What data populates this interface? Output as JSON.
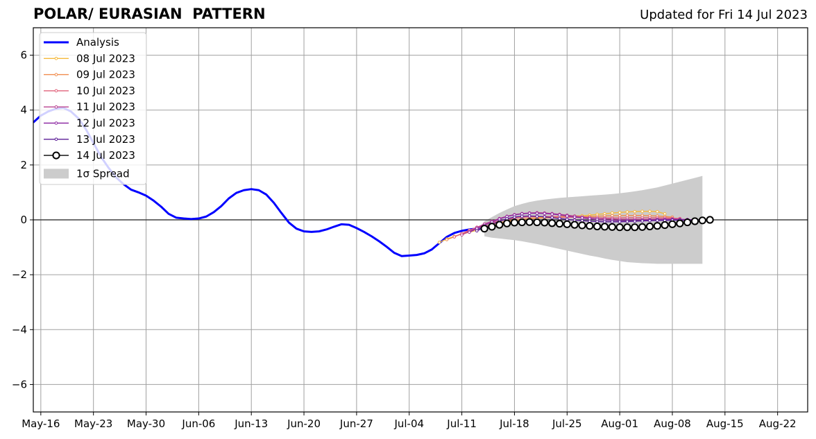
{
  "header": {
    "title": "POLAR/ EURASIAN  PATTERN",
    "updated": "Updated for Fri 14 Jul 2023"
  },
  "chart_data": {
    "type": "line",
    "title": "POLAR/ EURASIAN  PATTERN",
    "xlabel": "",
    "ylabel": "",
    "x_is_date": true,
    "xlim": [
      "2023-05-15",
      "2023-08-26"
    ],
    "ylim": [
      -7,
      7
    ],
    "yticks": [
      -6,
      -4,
      -2,
      0,
      2,
      4,
      6
    ],
    "xtick_dates": [
      "2023-05-16",
      "2023-05-23",
      "2023-05-30",
      "2023-06-06",
      "2023-06-13",
      "2023-06-20",
      "2023-06-27",
      "2023-07-04",
      "2023-07-11",
      "2023-07-18",
      "2023-07-25",
      "2023-08-01",
      "2023-08-08",
      "2023-08-15",
      "2023-08-22"
    ],
    "xtick_labels": [
      "May-16",
      "May-23",
      "May-30",
      "Jun-06",
      "Jun-13",
      "Jun-20",
      "Jun-27",
      "Jul-04",
      "Jul-11",
      "Jul-18",
      "Jul-25",
      "Aug-01",
      "Aug-08",
      "Aug-15",
      "Aug-22"
    ],
    "grid": true,
    "zero_line": true,
    "legend_position": "top-left",
    "legend_sigma_label": "1σ Spread",
    "analysis": {
      "name": "Analysis",
      "color": "#0000ff",
      "x": [
        "2023-05-15",
        "2023-05-16",
        "2023-05-17",
        "2023-05-18",
        "2023-05-19",
        "2023-05-20",
        "2023-05-21",
        "2023-05-22",
        "2023-05-23",
        "2023-05-24",
        "2023-05-25",
        "2023-05-26",
        "2023-05-27",
        "2023-05-28",
        "2023-05-29",
        "2023-05-30",
        "2023-05-31",
        "2023-06-01",
        "2023-06-02",
        "2023-06-03",
        "2023-06-04",
        "2023-06-05",
        "2023-06-06",
        "2023-06-07",
        "2023-06-08",
        "2023-06-09",
        "2023-06-10",
        "2023-06-11",
        "2023-06-12",
        "2023-06-13",
        "2023-06-14",
        "2023-06-15",
        "2023-06-16",
        "2023-06-17",
        "2023-06-18",
        "2023-06-19",
        "2023-06-20",
        "2023-06-21",
        "2023-06-22",
        "2023-06-23",
        "2023-06-24",
        "2023-06-25",
        "2023-06-26",
        "2023-06-27",
        "2023-06-28",
        "2023-06-29",
        "2023-06-30",
        "2023-07-01",
        "2023-07-02",
        "2023-07-03",
        "2023-07-04",
        "2023-07-05",
        "2023-07-06",
        "2023-07-07",
        "2023-07-08",
        "2023-07-09",
        "2023-07-10",
        "2023-07-11",
        "2023-07-12",
        "2023-07-13",
        "2023-07-14"
      ],
      "values": [
        3.55,
        3.8,
        3.95,
        4.05,
        4.08,
        3.95,
        3.7,
        3.3,
        2.8,
        2.3,
        1.9,
        1.55,
        1.3,
        1.1,
        1.0,
        0.88,
        0.7,
        0.48,
        0.22,
        0.08,
        0.05,
        0.03,
        0.05,
        0.12,
        0.28,
        0.5,
        0.78,
        0.98,
        1.08,
        1.12,
        1.08,
        0.92,
        0.62,
        0.25,
        -0.1,
        -0.32,
        -0.42,
        -0.44,
        -0.42,
        -0.35,
        -0.25,
        -0.16,
        -0.18,
        -0.3,
        -0.44,
        -0.6,
        -0.78,
        -0.98,
        -1.2,
        -1.32,
        -1.3,
        -1.28,
        -1.22,
        -1.08,
        -0.85,
        -0.62,
        -0.48,
        -0.4,
        -0.35,
        -0.32,
        -0.3
      ]
    },
    "spread": {
      "x": [
        "2023-07-14",
        "2023-07-15",
        "2023-07-16",
        "2023-07-17",
        "2023-07-18",
        "2023-07-19",
        "2023-07-20",
        "2023-07-21",
        "2023-07-22",
        "2023-07-23",
        "2023-07-24",
        "2023-07-25",
        "2023-07-26",
        "2023-07-27",
        "2023-07-28",
        "2023-07-29",
        "2023-07-30",
        "2023-07-31",
        "2023-08-01",
        "2023-08-02",
        "2023-08-03",
        "2023-08-04",
        "2023-08-05",
        "2023-08-06",
        "2023-08-07",
        "2023-08-08",
        "2023-08-09",
        "2023-08-10",
        "2023-08-11",
        "2023-08-12"
      ],
      "upper": [
        -0.05,
        0.1,
        0.25,
        0.38,
        0.5,
        0.58,
        0.65,
        0.7,
        0.74,
        0.77,
        0.8,
        0.82,
        0.84,
        0.86,
        0.88,
        0.9,
        0.92,
        0.94,
        0.97,
        1.0,
        1.04,
        1.08,
        1.13,
        1.18,
        1.25,
        1.32,
        1.39,
        1.46,
        1.53,
        1.6
      ],
      "lower": [
        -0.6,
        -0.65,
        -0.68,
        -0.71,
        -0.74,
        -0.78,
        -0.83,
        -0.88,
        -0.94,
        -1.0,
        -1.06,
        -1.12,
        -1.18,
        -1.24,
        -1.3,
        -1.35,
        -1.41,
        -1.46,
        -1.5,
        -1.54,
        -1.56,
        -1.58,
        -1.59,
        -1.6,
        -1.6,
        -1.6,
        -1.6,
        -1.6,
        -1.6,
        -1.6
      ],
      "color": "#cccccc"
    },
    "forecasts": [
      {
        "name": "08 Jul 2023",
        "color": "#f5b93a",
        "start": "2023-07-08",
        "values": [
          -0.82,
          -0.7,
          -0.6,
          -0.52,
          -0.45,
          -0.38,
          -0.3,
          -0.22,
          -0.14,
          -0.08,
          -0.02,
          0.02,
          0.05,
          0.08,
          0.1,
          0.11,
          0.12,
          0.13,
          0.14,
          0.15,
          0.17,
          0.2,
          0.22,
          0.25,
          0.27,
          0.29,
          0.3,
          0.31,
          0.31,
          0.3,
          0.22
        ]
      },
      {
        "name": "09 Jul 2023",
        "color": "#f08b4b",
        "start": "2023-07-09",
        "values": [
          -0.72,
          -0.62,
          -0.5,
          -0.4,
          -0.32,
          -0.24,
          -0.16,
          -0.1,
          -0.05,
          -0.01,
          0.02,
          0.04,
          0.06,
          0.07,
          0.08,
          0.09,
          0.1,
          0.1,
          0.11,
          0.12,
          0.13,
          0.14,
          0.15,
          0.15,
          0.16,
          0.16,
          0.16,
          0.15,
          0.14,
          0.12,
          0.1
        ]
      },
      {
        "name": "10 Jul 2023",
        "color": "#e0607a",
        "start": "2023-07-10",
        "values": [
          -0.62,
          -0.5,
          -0.38,
          -0.27,
          -0.18,
          -0.1,
          -0.04,
          0.02,
          0.06,
          0.09,
          0.11,
          0.12,
          0.12,
          0.12,
          0.11,
          0.1,
          0.09,
          0.08,
          0.08,
          0.07,
          0.07,
          0.07,
          0.07,
          0.08,
          0.08,
          0.08,
          0.08,
          0.08,
          0.07,
          0.06,
          0.05
        ]
      },
      {
        "name": "11 Jul 2023",
        "color": "#b8418f",
        "start": "2023-07-11",
        "values": [
          -0.55,
          -0.42,
          -0.28,
          -0.15,
          -0.05,
          0.05,
          0.13,
          0.19,
          0.23,
          0.25,
          0.26,
          0.25,
          0.23,
          0.2,
          0.17,
          0.14,
          0.11,
          0.08,
          0.06,
          0.04,
          0.03,
          0.02,
          0.02,
          0.02,
          0.02,
          0.02,
          0.03,
          0.03,
          0.03,
          0.02,
          0.01
        ]
      },
      {
        "name": "12 Jul 2023",
        "color": "#8e2aa3",
        "start": "2023-07-12",
        "values": [
          -0.45,
          -0.32,
          -0.2,
          -0.08,
          0.03,
          0.12,
          0.18,
          0.22,
          0.24,
          0.24,
          0.23,
          0.21,
          0.18,
          0.14,
          0.1,
          0.07,
          0.04,
          0.01,
          -0.01,
          -0.02,
          -0.03,
          -0.03,
          -0.03,
          -0.02,
          -0.01,
          0.0,
          0.0,
          0.01,
          0.01,
          0.01,
          0.0
        ]
      },
      {
        "name": "13 Jul 2023",
        "color": "#5a1b96",
        "start": "2023-07-13",
        "values": [
          -0.4,
          -0.28,
          -0.16,
          -0.05,
          0.04,
          0.1,
          0.13,
          0.14,
          0.13,
          0.11,
          0.08,
          0.05,
          0.02,
          -0.01,
          -0.03,
          -0.05,
          -0.06,
          -0.07,
          -0.07,
          -0.07,
          -0.06,
          -0.05,
          -0.04,
          -0.03,
          -0.02,
          -0.02,
          -0.01,
          -0.01,
          -0.01,
          0.0,
          0.0
        ]
      },
      {
        "name": "14 Jul 2023",
        "color": "#000000",
        "start": "2023-07-14",
        "values": [
          -0.32,
          -0.25,
          -0.18,
          -0.13,
          -0.1,
          -0.09,
          -0.08,
          -0.09,
          -0.1,
          -0.12,
          -0.14,
          -0.16,
          -0.18,
          -0.2,
          -0.22,
          -0.24,
          -0.25,
          -0.26,
          -0.27,
          -0.27,
          -0.27,
          -0.26,
          -0.24,
          -0.22,
          -0.19,
          -0.16,
          -0.13,
          -0.09,
          -0.05,
          -0.02,
          0.0
        ]
      }
    ]
  }
}
